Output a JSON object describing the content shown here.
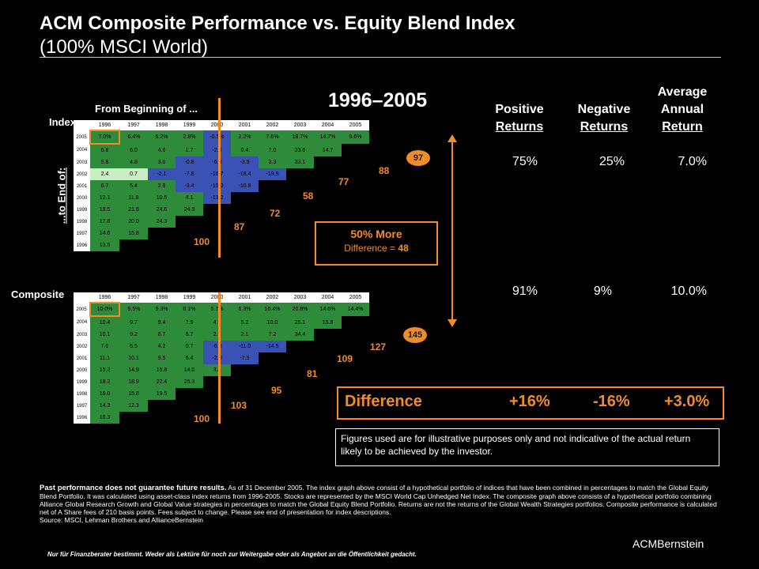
{
  "title": "ACM Composite Performance vs. Equity Blend Index",
  "subtitle": "(100% MSCI World)",
  "period": "1996–2005",
  "labels": {
    "from_beginning": "From Beginning of ...",
    "to_end": "...to End of:",
    "index": "Index",
    "composite": "Composite"
  },
  "columns": {
    "positive": [
      "Positive",
      "Returns"
    ],
    "negative": [
      "Negative",
      "Returns"
    ],
    "average": [
      "Average",
      "Annual",
      "Return"
    ]
  },
  "index_stats": {
    "positive": "75%",
    "negative": "25%",
    "average": "7.0%"
  },
  "composite_stats": {
    "positive": "91%",
    "negative": "9%",
    "average": "10.0%"
  },
  "more_box": {
    "headline": "50% More",
    "difference_label": "Difference =",
    "difference_value": "48"
  },
  "difference_row": {
    "label": "Difference",
    "positive": "+16%",
    "negative": "-16%",
    "average": "+3.0%"
  },
  "disclaimer_box": "Figures used are for illustrative purposes only and not indicative of the actual return likely to be achieved by the investor.",
  "footnote_bold": "Past performance does not guarantee future results.",
  "footnote": "As of 31 December 2005. The index graph above consist of a hypothetical portfolio of indices that have been combined in percentages to match the Global Equity Blend Portfolio. It was calculated using asset-class index returns from 1996-2005. Stocks are represented by the MSCI World Cap Unhedged Net Index. The composite graph above consists of a hypothetical portfolio combining Alliance Global Research Growth and Global Value strategies in percentages to match the Global Equity Blend Portfolio. Returns are not the returns of the Global Wealth Strategies portfolios. Composite performance is calculated net of A Share fees of 210 basis points. Fees subject to change. Please see end of presentation for index descriptions.",
  "source": "Source: MSCI, Lehman Brothers and AllianceBernstein",
  "footer_note": "Nur für Finanzberater bestimmt. Weder als Lektüre für noch zur Weitergabe oder als Angebot an die Öffentlichkeit gedacht.",
  "brand": "ACMBernstein",
  "index_counts": {
    "c100": "100",
    "c87": "87",
    "c72": "72",
    "c58": "58",
    "c77": "77",
    "c88": "88",
    "c97": "97"
  },
  "composite_counts": {
    "c100": "100",
    "c103": "103",
    "c95": "95",
    "c81": "81",
    "c109": "109",
    "c127": "127",
    "c145": "145"
  },
  "index_grid": {
    "years": [
      "1996",
      "1997",
      "1998",
      "1999",
      "2000",
      "2001",
      "2002",
      "2003",
      "2004",
      "2005"
    ],
    "rows": [
      {
        "end": "2005",
        "cells": [
          "7.0%",
          "6.4%",
          "5.2%",
          "2.8%",
          "-0.5%",
          "2.2%",
          "7.6%",
          "18.7%",
          "14.7%",
          "9.6%"
        ]
      },
      {
        "end": "2004",
        "cells": [
          "6.8",
          "6.0",
          "4.6",
          "1.7",
          "-2.4",
          "0.4",
          "7.0",
          "23.6",
          "14.7",
          ""
        ]
      },
      {
        "end": "2003",
        "cells": [
          "5.8",
          "4.8",
          "3.0",
          "-0.8",
          "-6.3",
          "-3.9",
          "3.3",
          "33.1",
          "",
          ""
        ]
      },
      {
        "end": "2002",
        "cells": [
          "2.4",
          "0.7",
          "-2.1",
          "-7.8",
          "-16.7",
          "-18.4",
          "-19.9",
          "",
          "",
          ""
        ]
      },
      {
        "end": "2001",
        "cells": [
          "6.7",
          "5.4",
          "2.9",
          "-3.4",
          "-15.0",
          "-16.8",
          "",
          "",
          "",
          ""
        ]
      },
      {
        "end": "2000",
        "cells": [
          "12.1",
          "11.8",
          "10.5",
          "4.1",
          "-13.2",
          "",
          "",
          "",
          "",
          ""
        ]
      },
      {
        "end": "1999",
        "cells": [
          "19.5",
          "21.6",
          "24.6",
          "24.9",
          "",
          "",
          "",
          "",
          "",
          ""
        ]
      },
      {
        "end": "1998",
        "cells": [
          "17.8",
          "20.0",
          "24.3",
          "",
          "",
          "",
          "",
          "",
          "",
          ""
        ]
      },
      {
        "end": "1997",
        "cells": [
          "14.6",
          "15.8",
          "",
          "",
          "",
          "",
          "",
          "",
          "",
          ""
        ]
      },
      {
        "end": "1996",
        "cells": [
          "13.5",
          "",
          "",
          "",
          "",
          "",
          "",
          "",
          "",
          ""
        ]
      }
    ]
  },
  "composite_grid": {
    "years": [
      "1996",
      "1997",
      "1998",
      "1999",
      "2000",
      "2001",
      "2002",
      "2003",
      "2004",
      "2005"
    ],
    "rows": [
      {
        "end": "2005",
        "cells": [
          "10.0%",
          "9.5%",
          "9.3%",
          "8.1%",
          "5.7%",
          "6.3%",
          "10.4%",
          "20.8%",
          "14.6%",
          "14.4%"
        ]
      },
      {
        "end": "2004",
        "cells": [
          "10.4",
          "9.7",
          "9.4",
          "7.9",
          "4.9",
          "5.2",
          "10.0",
          "25.1",
          "15.8",
          ""
        ]
      },
      {
        "end": "2003",
        "cells": [
          "10.1",
          "9.2",
          "8.7",
          "6.7",
          "2.5",
          "2.1",
          "7.2",
          "34.4",
          "",
          ""
        ]
      },
      {
        "end": "2002",
        "cells": [
          "7.0",
          "5.5",
          "4.2",
          "0.7",
          "-6.3",
          "-11.0",
          "-14.5",
          "",
          "",
          ""
        ]
      },
      {
        "end": "2001",
        "cells": [
          "11.1",
          "10.1",
          "9.5",
          "6.4",
          "-2.0",
          "-7.5",
          "",
          "",
          "",
          ""
        ]
      },
      {
        "end": "2000",
        "cells": [
          "15.2",
          "14.9",
          "15.8",
          "14.0",
          "3.8",
          "",
          "",
          "",
          "",
          ""
        ]
      },
      {
        "end": "1999",
        "cells": [
          "18.2",
          "18.9",
          "22.4",
          "25.3",
          "",
          "",
          "",
          "",
          "",
          ""
        ]
      },
      {
        "end": "1998",
        "cells": [
          "16.0",
          "15.8",
          "19.5",
          "",
          "",
          "",
          "",
          "",
          "",
          ""
        ]
      },
      {
        "end": "1997",
        "cells": [
          "14.3",
          "12.3",
          "",
          "",
          "",
          "",
          "",
          "",
          "",
          ""
        ]
      },
      {
        "end": "1996",
        "cells": [
          "16.3",
          "",
          "",
          "",
          "",
          "",
          "",
          "",
          "",
          ""
        ]
      }
    ]
  },
  "colors": {
    "positive": "#2e8b3a",
    "positive_light": "#c8eec4",
    "negative": "#3a52b4",
    "accent": "#f28c28"
  }
}
